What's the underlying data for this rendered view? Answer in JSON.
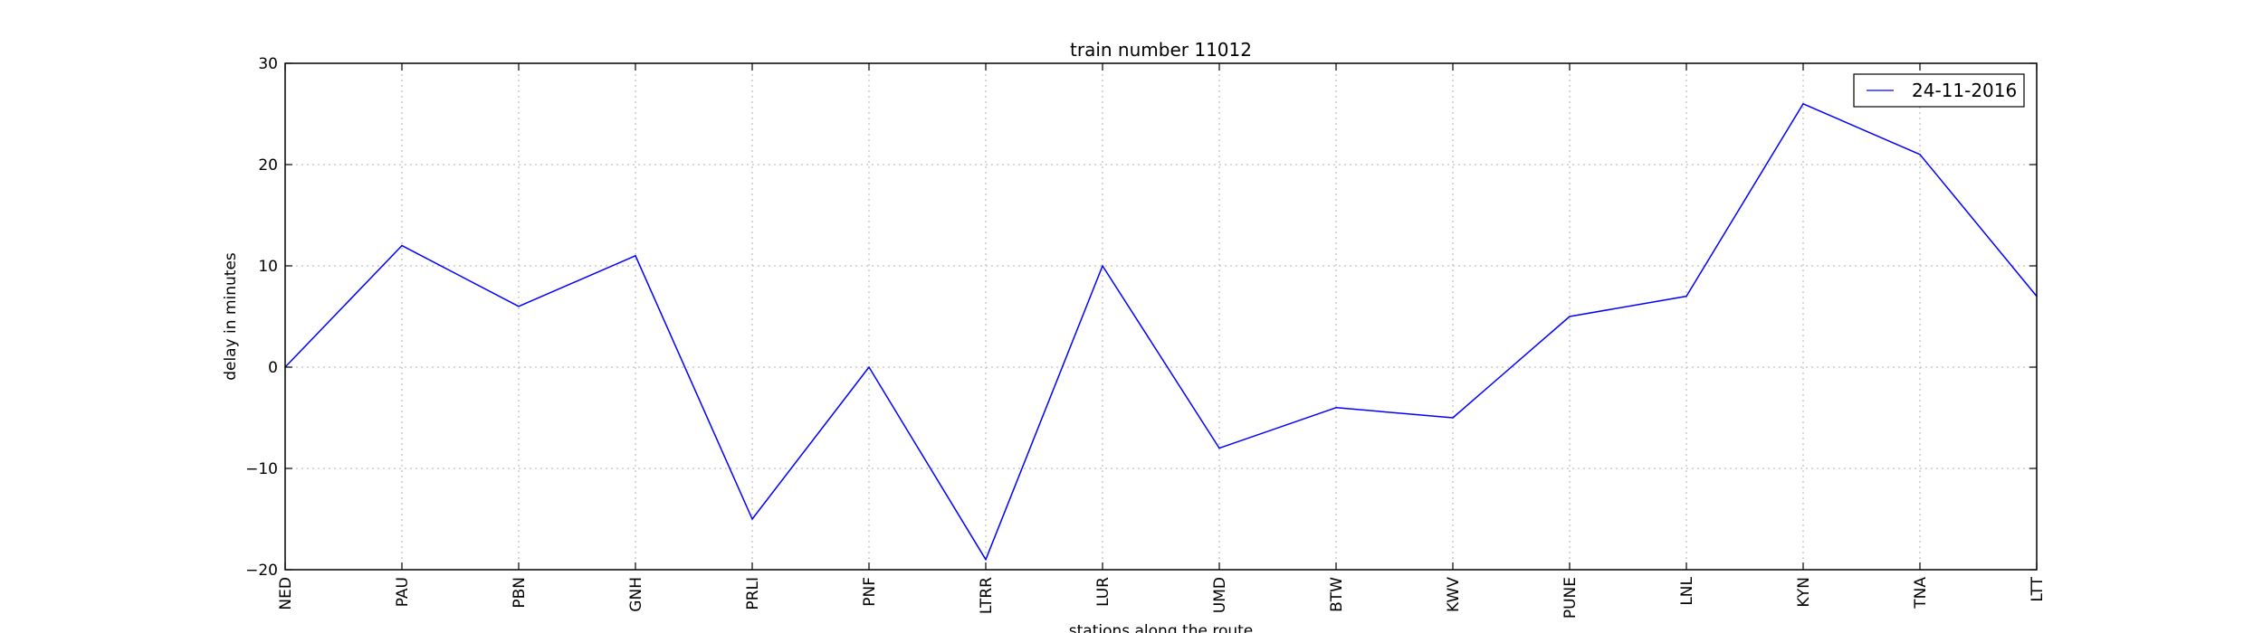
{
  "chart_data": {
    "type": "line",
    "title": "train number 11012",
    "xlabel": "stations along the route",
    "ylabel": "delay in minutes",
    "categories": [
      "NED",
      "PAU",
      "PBN",
      "GNH",
      "PRLI",
      "PNF",
      "LTRR",
      "LUR",
      "UMD",
      "BTW",
      "KWV",
      "PUNE",
      "LNL",
      "KYN",
      "TNA",
      "LTT"
    ],
    "series": [
      {
        "name": "24-11-2016",
        "color": "#0000ff",
        "values": [
          0,
          12,
          6,
          11,
          -15,
          0,
          -19,
          10,
          -8,
          -4,
          -5,
          5,
          7,
          26,
          21,
          7
        ]
      }
    ],
    "ylim": [
      -20,
      30
    ],
    "yticks": [
      -20,
      -10,
      0,
      10,
      20,
      30
    ],
    "ytick_labels": [
      "−20",
      "−10",
      "0",
      "10",
      "20",
      "30"
    ],
    "grid": true,
    "legend_position": "top-right",
    "x_tick_rotation": "vertical"
  }
}
